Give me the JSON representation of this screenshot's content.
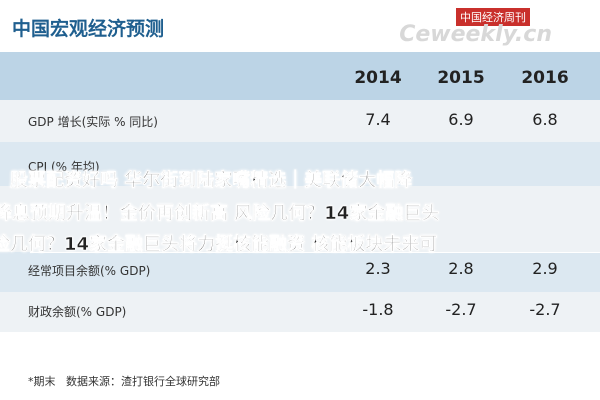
{
  "header": {
    "title": "中国宏观经济预测",
    "logo_top": "中国经济周刊",
    "logo_bottom": "Ceweekly.cn"
  },
  "table": {
    "columns": [
      "2014",
      "2015",
      "2016"
    ],
    "rows": [
      {
        "label": "GDP 增长(实际 % 同比)",
        "values": [
          "7.4",
          "6.9",
          "6.8"
        ]
      },
      {
        "label": "CPI (% 年均)",
        "values": []
      },
      {
        "label": "经常项目余额(% GDP)",
        "values": [
          "2.3",
          "2.8",
          "2.9"
        ]
      },
      {
        "label": "财政余额(% GDP)",
        "values": [
          "-1.8",
          "-2.7",
          "-2.7"
        ]
      }
    ]
  },
  "footnote": {
    "note": "*期末",
    "source": "数据来源：渣打银行全球研究部"
  },
  "overlay": [
    "股票配资好吗 华尔街到陆家嘴精选｜美联储大幅降",
    "降息预期升温！金价再创新高 风险几何？14家金融巨头",
    "险几何？14家金融巨头将力挺核能融资 核能板块未来可"
  ]
}
